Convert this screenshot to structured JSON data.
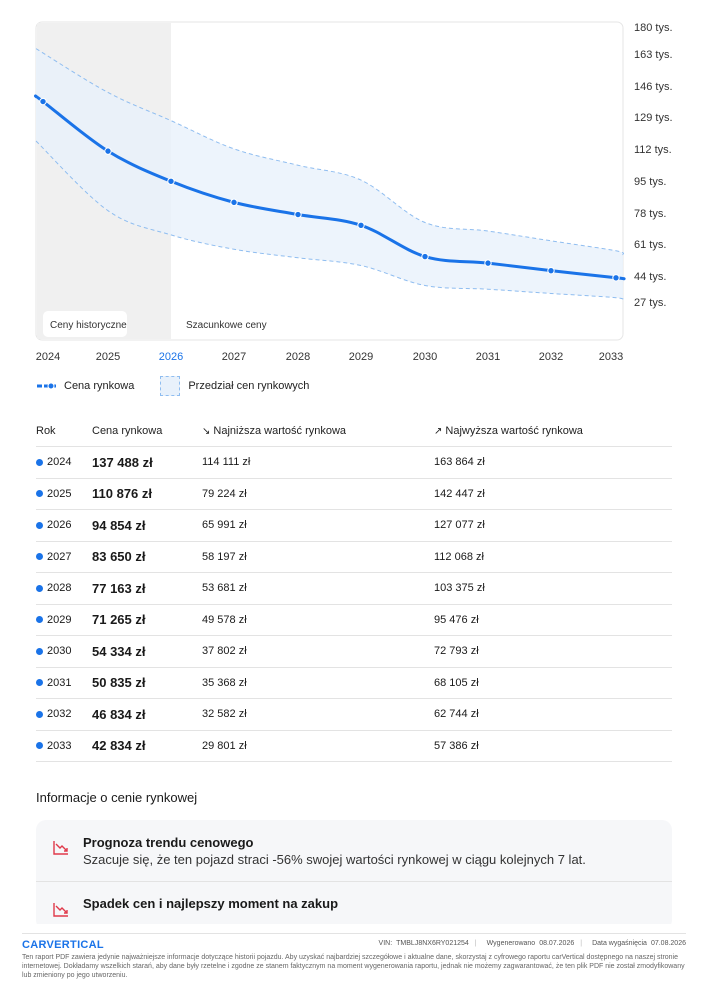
{
  "chart_data": {
    "type": "line",
    "x": [
      2024,
      2025,
      2026,
      2027,
      2028,
      2029,
      2030,
      2031,
      2032,
      2033
    ],
    "series": [
      {
        "name": "Cena rynkowa",
        "values": [
          137488,
          110876,
          94854,
          83650,
          77163,
          71265,
          54334,
          50835,
          46834,
          42834
        ]
      },
      {
        "name": "Przedział cen rynkowych",
        "lower": [
          114111,
          79224,
          65991,
          58197,
          53681,
          49578,
          37802,
          35368,
          32582,
          29801
        ],
        "upper": [
          163864,
          142447,
          127077,
          112068,
          103375,
          95476,
          72793,
          68105,
          62744,
          57386
        ]
      }
    ],
    "ylim": [
      27000,
      180000
    ],
    "y_ticks": [
      "180 tys.",
      "163 tys.",
      "146 tys.",
      "129 tys.",
      "112 tys.",
      "95 tys.",
      "78 tys.",
      "61 tys.",
      "44 tys.",
      "27 tys."
    ],
    "y_tick_values": [
      180000,
      163000,
      146000,
      129000,
      112000,
      95000,
      78000,
      61000,
      44000,
      27000
    ],
    "x_tick_labels": [
      "2024",
      "2025",
      "2026",
      "2027",
      "2028",
      "2029",
      "2030",
      "2031",
      "2032",
      "2033"
    ],
    "highlight_x": "2026",
    "regions": {
      "historical": "Ceny historyczne",
      "estimated": "Szacunkowe ceny"
    },
    "legend_placement": "bottom-left",
    "colors": {
      "line": "#1a73e8",
      "band": "#e8f1fb",
      "band_edge": "#8fbdf0",
      "historical_bg": "#f0f0f0",
      "highlight_tick": "#1a73e8"
    }
  },
  "legend": {
    "price": "Cena rynkowa",
    "range": "Przedział cen rynkowych"
  },
  "table": {
    "headers": {
      "year": "Rok",
      "price": "Cena rynkowa",
      "low": "Najniższa wartość rynkowa",
      "high": "Najwyższa wartość rynkowa"
    },
    "rows": [
      {
        "year": "2024",
        "price": "137 488 zł",
        "low": "114 111 zł",
        "high": "163 864 zł"
      },
      {
        "year": "2025",
        "price": "110 876 zł",
        "low": "79 224 zł",
        "high": "142 447 zł"
      },
      {
        "year": "2026",
        "price": "94 854 zł",
        "low": "65 991 zł",
        "high": "127 077 zł"
      },
      {
        "year": "2027",
        "price": "83 650 zł",
        "low": "58 197 zł",
        "high": "112 068 zł"
      },
      {
        "year": "2028",
        "price": "77 163 zł",
        "low": "53 681 zł",
        "high": "103 375 zł"
      },
      {
        "year": "2029",
        "price": "71 265 zł",
        "low": "49 578 zł",
        "high": "95 476 zł"
      },
      {
        "year": "2030",
        "price": "54 334 zł",
        "low": "37 802 zł",
        "high": "72 793 zł"
      },
      {
        "year": "2031",
        "price": "50 835 zł",
        "low": "35 368 zł",
        "high": "68 105 zł"
      },
      {
        "year": "2032",
        "price": "46 834 zł",
        "low": "32 582 zł",
        "high": "62 744 zł"
      },
      {
        "year": "2033",
        "price": "42 834 zł",
        "low": "29 801 zł",
        "high": "57 386 zł"
      }
    ]
  },
  "info": {
    "title": "Informacje o cenie rynkowej",
    "items": [
      {
        "title": "Prognoza trendu cenowego",
        "desc": "Szacuje się, że ten pojazd straci -56% swojej wartości rynkowej w ciągu kolejnych 7 lat.",
        "icon": "trend-down-icon"
      },
      {
        "title": "Spadek cen i najlepszy moment na zakup",
        "desc": "",
        "icon": "trend-down-icon"
      }
    ],
    "accent": "#e0394a"
  },
  "footer": {
    "logo": "CARVERTICAL",
    "vin_label": "VIN:",
    "vin": "TMBLJ8NX6RY021254",
    "generated_label": "Wygenerowano",
    "generated": "08.07.2026",
    "expiry_label": "Data wygaśnięcia",
    "expiry": "07.08.2026",
    "disclaimer": "Ten raport PDF zawiera jedynie najważniejsze informacje dotyczące historii pojazdu. Aby uzyskać najbardziej szczegółowe i aktualne dane, skorzystaj z cyfrowego raportu carVertical dostępnego na naszej stronie internetowej. Dokładamy wszelkich starań, aby dane były rzetelne i zgodne ze stanem faktycznym na moment wygenerowania raportu, jednak nie możemy zagwarantować, że ten plik PDF nie został zmodyfikowany lub zmieniony po jego utworzeniu."
  }
}
